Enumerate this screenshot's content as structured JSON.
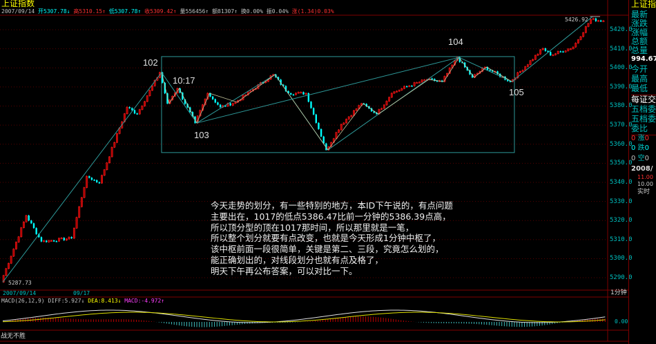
{
  "window": {
    "title": "上证指数"
  },
  "infobar": {
    "date": "2007/09/14",
    "open": "开5307.78",
    "open_arrow": "↓",
    "high": "高5310.15",
    "high_arrow": "↑",
    "low": "低5307.78",
    "low_arrow": "↑",
    "close": "收5309.42",
    "close_arrow": "↑",
    "volume": "量556456",
    "volume_arrow": "↑",
    "amount": "额81307",
    "amount_arrow": "↑",
    "turnover": "换0.00%",
    "amplitude": "振0.04%",
    "change": "涨(1.34)0.03%"
  },
  "price_axis": [
    "5420.0",
    "5410.0",
    "5400.0",
    "5390.0",
    "5380.0",
    "5370.0",
    "5360.0",
    "5350.0",
    "5340.0",
    "5330.0",
    "5320.0",
    "5310.0",
    "5300.0",
    "5290.0"
  ],
  "time_axis": {
    "start": "2007/09/14",
    "mid": "09/17",
    "period": "1分钟"
  },
  "annotations": {
    "p102": "102",
    "p1017": "10:17",
    "p103": "103",
    "p104": "104",
    "p105": "105",
    "max_label": "5426.92",
    "min_label": "5287.73"
  },
  "pivots": [
    [
      0,
      5287.7
    ],
    [
      10,
      5322.6
    ],
    [
      16,
      5309
    ],
    [
      28,
      5310.7
    ],
    [
      34,
      5343.2
    ],
    [
      39,
      5339.6
    ],
    [
      50,
      5379.4
    ],
    [
      54,
      5375.8
    ],
    [
      63,
      5397.6
    ],
    [
      66,
      5381.3
    ],
    [
      70,
      5389.2
    ],
    [
      77,
      5371.1
    ],
    [
      82,
      5386.7
    ],
    [
      87,
      5379.4
    ],
    [
      93,
      5382
    ],
    [
      108,
      5396.5
    ],
    [
      114,
      5386.7
    ],
    [
      121,
      5386.7
    ],
    [
      129,
      5357
    ],
    [
      135,
      5370.4
    ],
    [
      143,
      5381.3
    ],
    [
      149,
      5375.8
    ],
    [
      155,
      5386.7
    ],
    [
      161,
      5390.3
    ],
    [
      169,
      5393.9
    ],
    [
      175,
      5392.8
    ],
    [
      181,
      5405.5
    ],
    [
      187,
      5395
    ],
    [
      192,
      5400.4
    ],
    [
      202,
      5392.8
    ],
    [
      215,
      5410.2
    ],
    [
      218,
      5406.6
    ],
    [
      227,
      5410.9
    ],
    [
      234,
      5425.4
    ],
    [
      239,
      5424.7
    ]
  ],
  "segments": [
    [
      0,
      5287.7
    ],
    [
      63,
      5397.6
    ],
    [
      77,
      5371.1
    ],
    [
      108,
      5396.5
    ],
    [
      129,
      5357
    ],
    [
      181,
      5405.5
    ],
    [
      202,
      5392.8
    ],
    [
      234,
      5426.9
    ]
  ],
  "zone_box": {
    "from": 63,
    "to": 203,
    "high": 5405.9,
    "low": 5355.6
  },
  "note": [
    "今天走势的划分，有一些特别的地方，本ID下午说的，有点问题",
    "主要出在，1017的低点5386.47比前一分钟的5386.39点高，",
    "所以顶分型的顶在1017那时间，所以那里就是一笔，",
    "所以整个划分就要有点改变，也就是今天形成1分钟中枢了，",
    "该中枢前面一段很简单，关键是第二、三段，究竟怎么划的，",
    "能正确划出的，对线段划分也就有点及格了，",
    "明天下午再公布答案，可以对比一下。"
  ],
  "macd": {
    "label": "MACD(26,12,9)",
    "diff": "DIFF:5.927",
    "diff_arrow": "↓",
    "dea": "DEA:8.413",
    "dea_arrow": "↓",
    "macd": "MACD:-4.972",
    "macd_arrow": "↑",
    "zero": "0.00"
  },
  "footer": "战无不胜",
  "panel": {
    "title": "上证指",
    "rows": [
      "最新",
      "涨跌",
      "涨幅",
      "总额",
      "总量"
    ],
    "value": "994.67",
    "rows2": [
      "今开",
      "最高",
      "最低"
    ],
    "sub": "每证交",
    "rows3": [
      "五档委",
      "五档委",
      "委比"
    ],
    "counts": [
      [
        "0",
        "涨",
        "0"
      ],
      [
        "0",
        "跌",
        "0"
      ],
      [
        "0",
        "空",
        "0"
      ]
    ],
    "date": "2008/",
    "p1": "11.00",
    "p2": "10.00",
    "mode": "实时"
  },
  "colors": {
    "up": "#ff2020",
    "down": "#00ffff",
    "grid": "#800000",
    "box": "#2e9a9a"
  }
}
